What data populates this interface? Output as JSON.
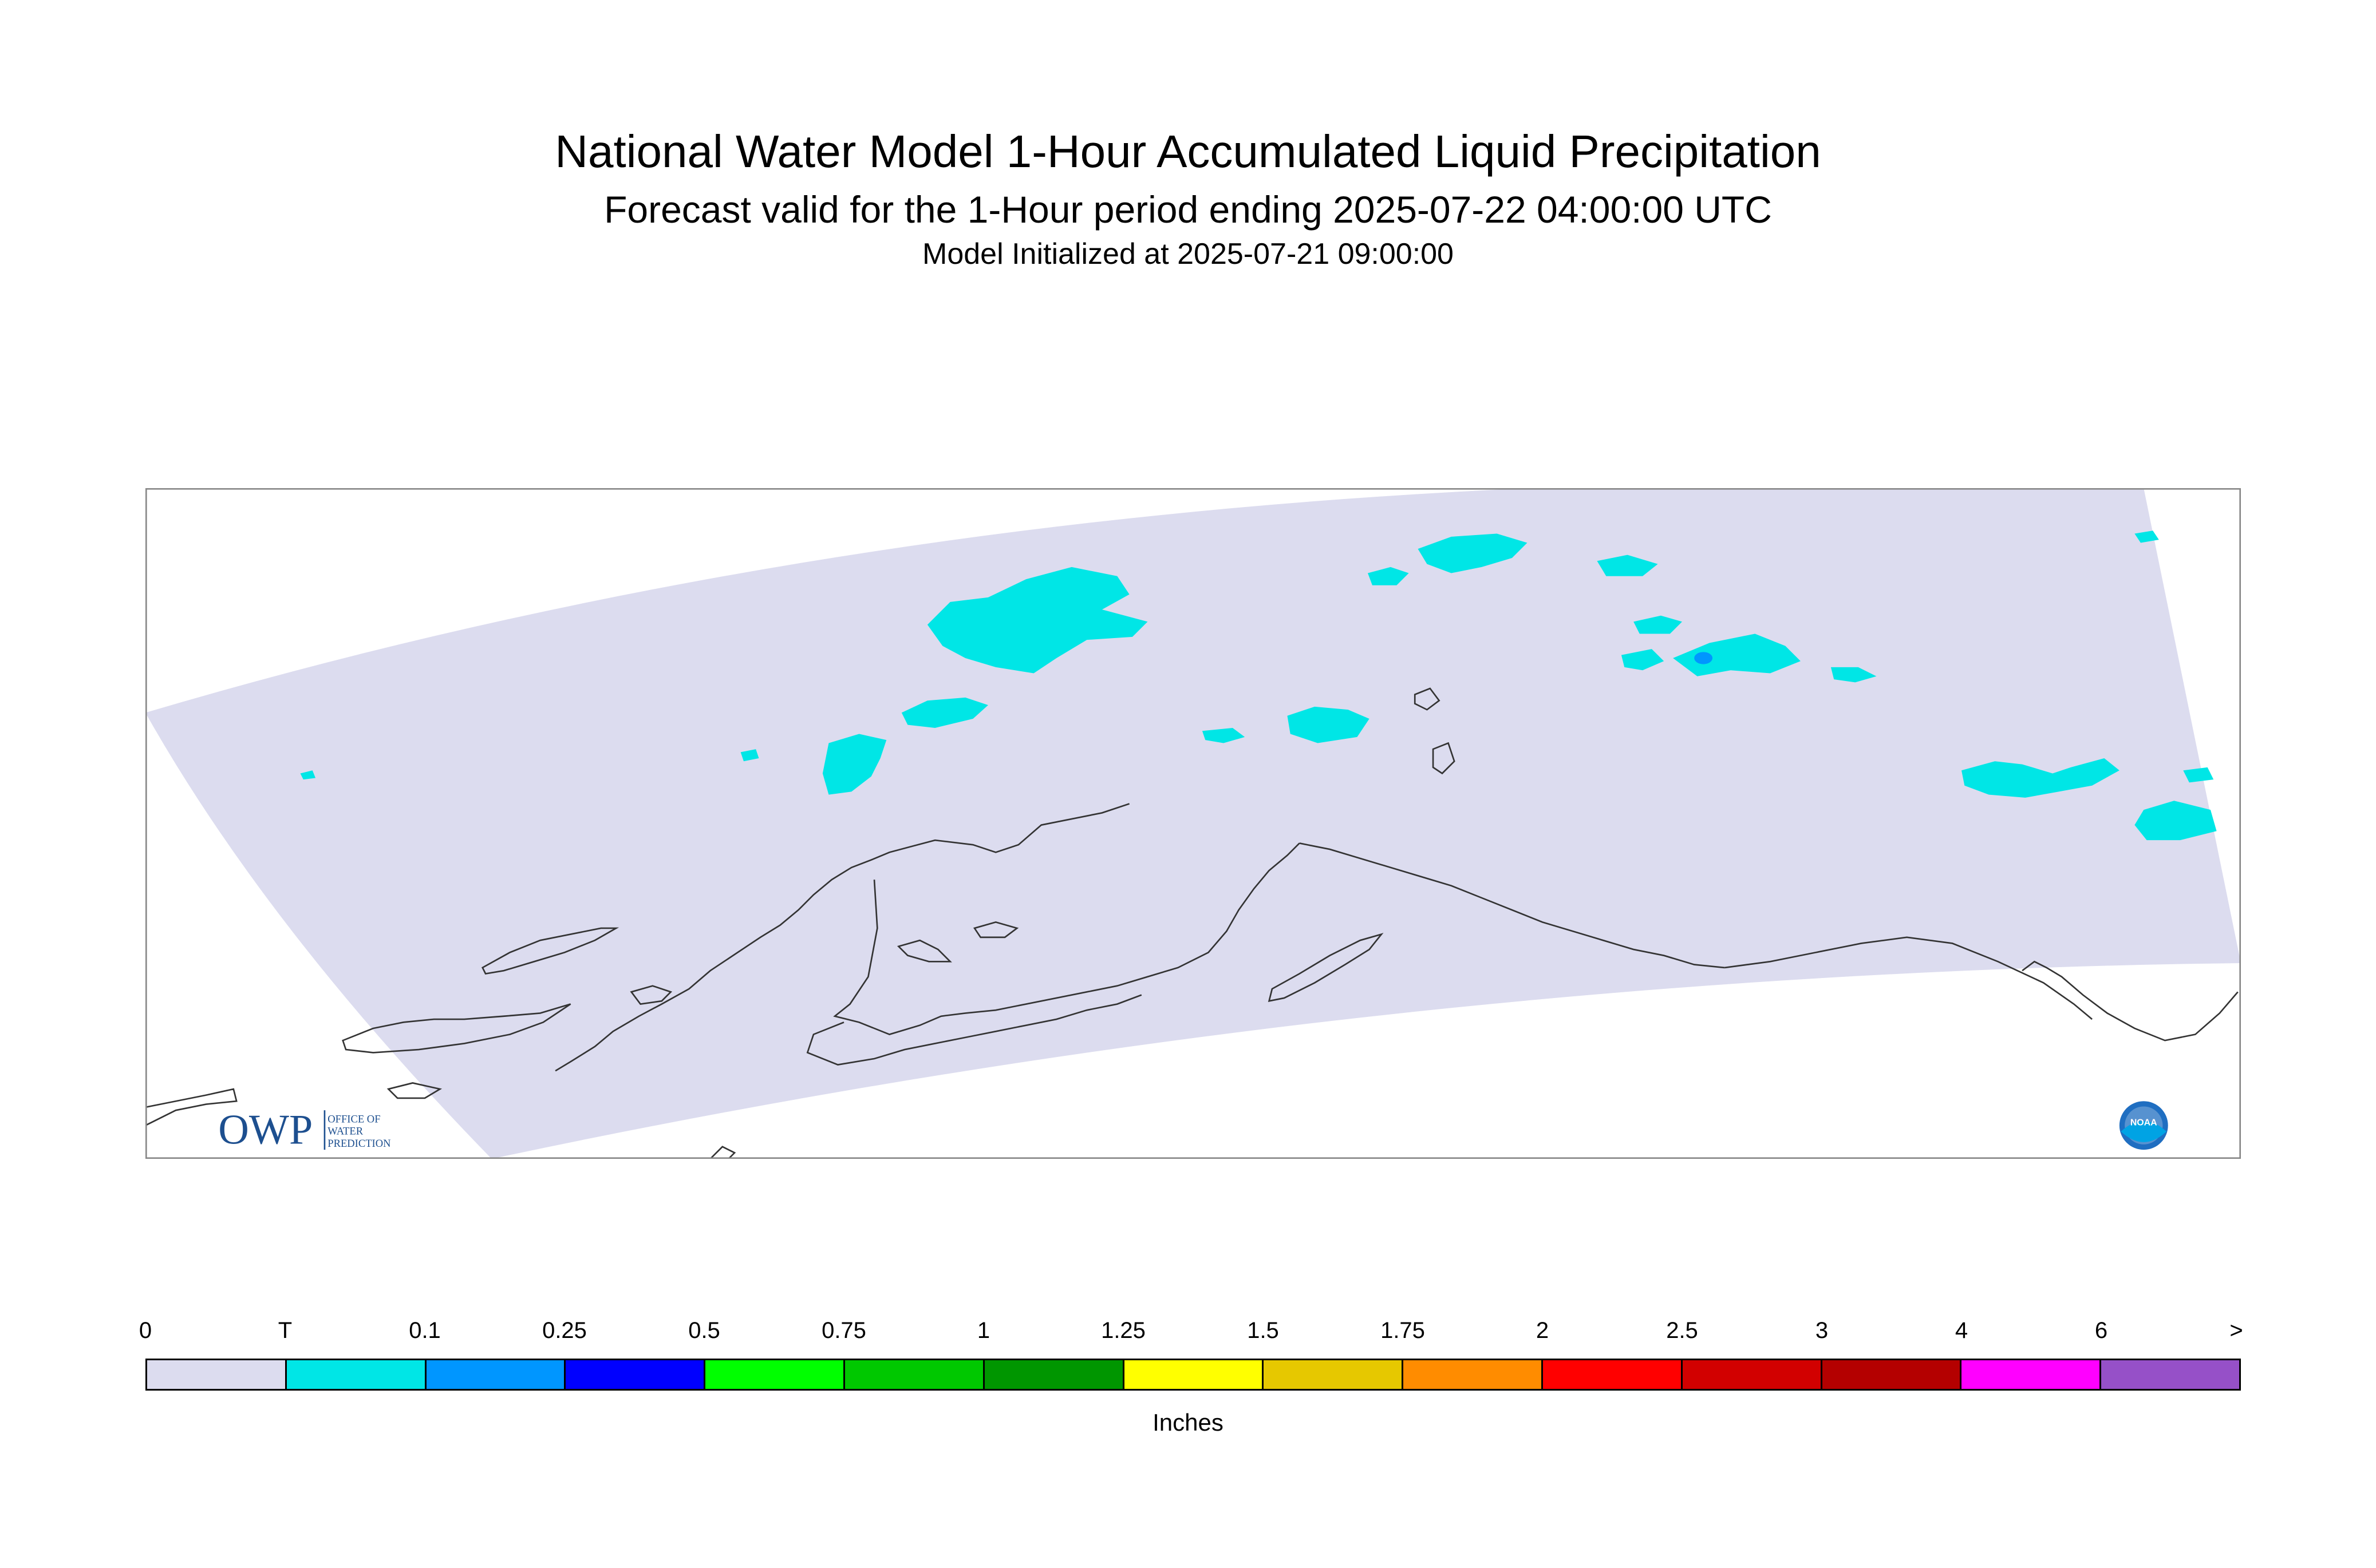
{
  "title": {
    "main": "National Water Model 1-Hour Accumulated Liquid Precipitation",
    "sub": "Forecast valid for the 1-Hour period ending 2025-07-22 04:00:00 UTC",
    "init": "Model Initialized at 2025-07-21 09:00:00"
  },
  "map": {
    "domain_fill": "#dcdcef",
    "coast_color": "#333333",
    "precip_light": "#00e6e6",
    "precip_blue": "#0096ff",
    "logos": {
      "owp_text": "OWP",
      "owp_sub": [
        "OFFICE OF",
        "WATER",
        "PREDICTION"
      ],
      "noaa_text": "NOAA"
    }
  },
  "legend": {
    "ticks": [
      "0",
      "T",
      "0.1",
      "0.25",
      "0.5",
      "0.75",
      "1",
      "1.25",
      "1.5",
      "1.75",
      "2",
      "2.5",
      "3",
      "4",
      "6",
      ">"
    ],
    "colors": [
      "#dcdcef",
      "#00e6e6",
      "#0096ff",
      "#0000ff",
      "#00ff00",
      "#00c800",
      "#009600",
      "#ffff00",
      "#e6c800",
      "#ff8c00",
      "#ff0000",
      "#d20000",
      "#b40000",
      "#ff00ff",
      "#9650c8"
    ],
    "units": "Inches"
  }
}
